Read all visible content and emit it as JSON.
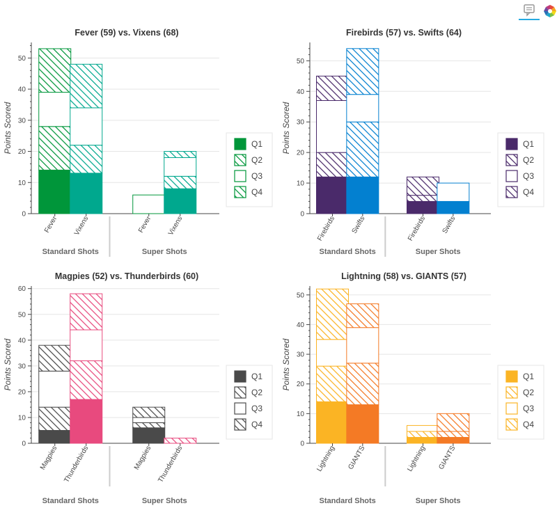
{
  "toolbar": {
    "icons": [
      "hover-tooltip-icon",
      "bokeh-logo-icon"
    ],
    "active_color": "#26aae1"
  },
  "quarters": [
    "Q1",
    "Q2",
    "Q3",
    "Q4"
  ],
  "chart_data": [
    {
      "type": "bar",
      "title": "Fever (59) vs. Vixens (68)",
      "ylabel": "Points Scored",
      "ylim": [
        0,
        55
      ],
      "yticks": [
        0,
        10,
        20,
        30,
        40,
        50
      ],
      "groups": [
        "Standard Shots",
        "Super Shots"
      ],
      "categories": [
        "Fever",
        "Vixens"
      ],
      "colors": [
        "#00963a",
        "#00a88e"
      ],
      "series": [
        {
          "name": "Q1",
          "style": "solid",
          "standard": [
            14,
            13
          ],
          "super": [
            0,
            8
          ]
        },
        {
          "name": "Q2",
          "style": "hatch",
          "standard": [
            14,
            9
          ],
          "super": [
            0,
            4
          ]
        },
        {
          "name": "Q3",
          "style": "outline",
          "standard": [
            11,
            12
          ],
          "super": [
            6,
            6
          ]
        },
        {
          "name": "Q4",
          "style": "hatch",
          "standard": [
            14,
            14
          ],
          "super": [
            0,
            2
          ]
        }
      ],
      "legend": "right"
    },
    {
      "type": "bar",
      "title": "Firebirds (57) vs. Swifts (64)",
      "ylabel": "Points Scored",
      "ylim": [
        0,
        56
      ],
      "yticks": [
        0,
        10,
        20,
        30,
        40,
        50
      ],
      "groups": [
        "Standard Shots",
        "Super Shots"
      ],
      "categories": [
        "Firebirds",
        "Swifts"
      ],
      "colors": [
        "#4a2a6a",
        "#0380d0"
      ],
      "series": [
        {
          "name": "Q1",
          "style": "solid",
          "standard": [
            12,
            12
          ],
          "super": [
            4,
            4
          ]
        },
        {
          "name": "Q2",
          "style": "hatch",
          "standard": [
            8,
            18
          ],
          "super": [
            2,
            0
          ]
        },
        {
          "name": "Q3",
          "style": "outline",
          "standard": [
            17,
            9
          ],
          "super": [
            0,
            6
          ]
        },
        {
          "name": "Q4",
          "style": "hatch",
          "standard": [
            8,
            15
          ],
          "super": [
            6,
            0
          ]
        }
      ],
      "legend": "right"
    },
    {
      "type": "bar",
      "title": "Magpies (52) vs. Thunderbirds (60)",
      "ylabel": "Points Scored",
      "ylim": [
        0,
        61
      ],
      "yticks": [
        0,
        10,
        20,
        30,
        40,
        50,
        60
      ],
      "groups": [
        "Standard Shots",
        "Super Shots"
      ],
      "categories": [
        "Magpies",
        "Thunderbirds"
      ],
      "colors": [
        "#4a4a4a",
        "#e84a7e"
      ],
      "series": [
        {
          "name": "Q1",
          "style": "solid",
          "standard": [
            5,
            17
          ],
          "super": [
            6,
            0
          ]
        },
        {
          "name": "Q2",
          "style": "hatch",
          "standard": [
            9,
            15
          ],
          "super": [
            2,
            0
          ]
        },
        {
          "name": "Q3",
          "style": "outline",
          "standard": [
            14,
            12
          ],
          "super": [
            2,
            0
          ]
        },
        {
          "name": "Q4",
          "style": "hatch",
          "standard": [
            10,
            14
          ],
          "super": [
            4,
            2
          ]
        }
      ],
      "legend": "right"
    },
    {
      "type": "bar",
      "title": "Lightning (58) vs. GIANTS (57)",
      "ylabel": "Points Scored",
      "ylim": [
        0,
        53
      ],
      "yticks": [
        0,
        10,
        20,
        30,
        40,
        50
      ],
      "groups": [
        "Standard Shots",
        "Super Shots"
      ],
      "categories": [
        "Lightning",
        "GIANTS"
      ],
      "colors": [
        "#fbb424",
        "#f47a25"
      ],
      "series": [
        {
          "name": "Q1",
          "style": "solid",
          "standard": [
            14,
            13
          ],
          "super": [
            2,
            2
          ]
        },
        {
          "name": "Q2",
          "style": "hatch",
          "standard": [
            12,
            14
          ],
          "super": [
            2,
            2
          ]
        },
        {
          "name": "Q3",
          "style": "outline",
          "standard": [
            9,
            12
          ],
          "super": [
            2,
            0
          ]
        },
        {
          "name": "Q4",
          "style": "hatch",
          "standard": [
            17,
            8
          ],
          "super": [
            0,
            6
          ]
        }
      ],
      "legend": "right"
    }
  ]
}
